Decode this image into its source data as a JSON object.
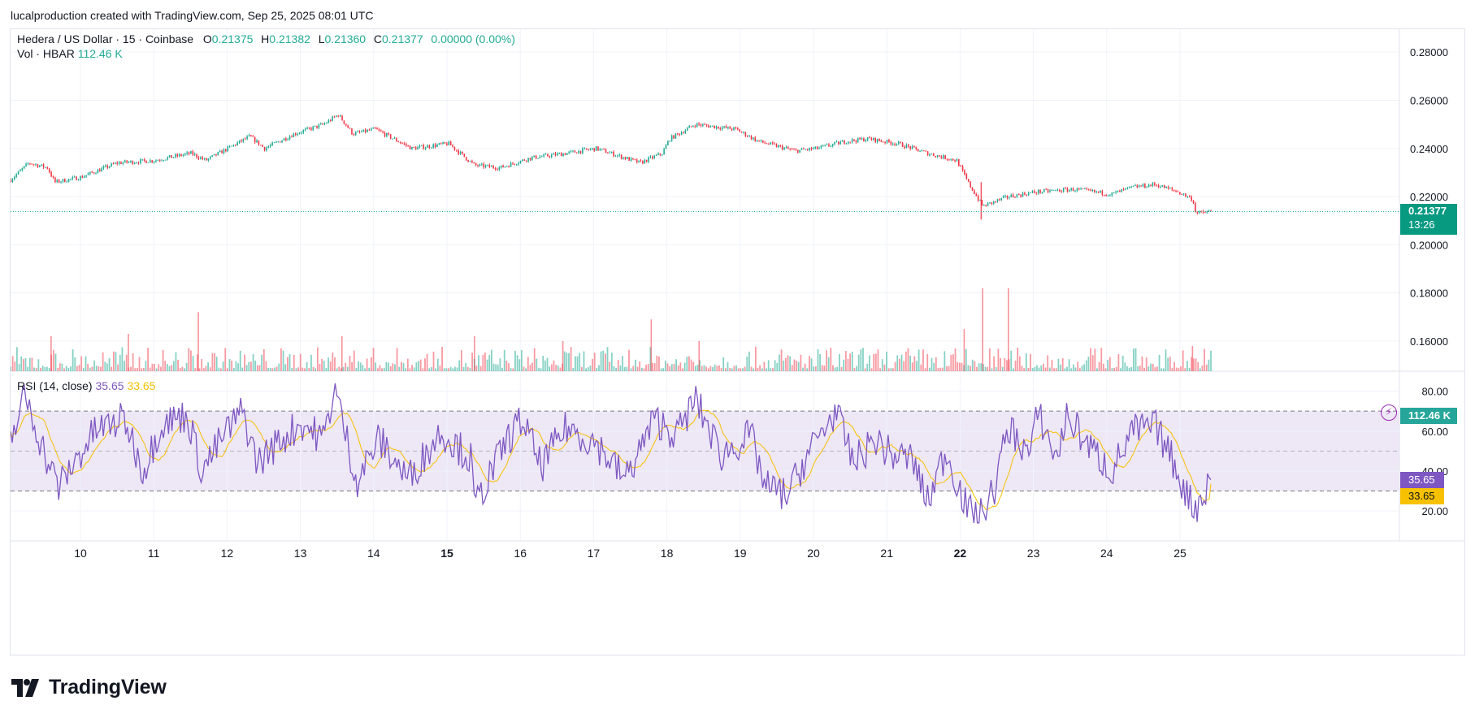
{
  "header": {
    "attribution": "lucalproduction created with TradingView.com, Sep 25, 2025 08:01 UTC"
  },
  "legend": {
    "symbol": "Hedera / US Dollar · 15 · Coinbase",
    "open_label": "O",
    "open": "0.21375",
    "high_label": "H",
    "high": "0.21382",
    "low_label": "L",
    "low": "0.21360",
    "close_label": "C",
    "close": "0.21377",
    "change": "0.00000 (0.00%)",
    "vol_label": "Vol · HBAR",
    "vol_value": "112.46 K",
    "rsi_label": "RSI (14, close)",
    "rsi_value": "35.65",
    "rsi_ma_value": "33.65"
  },
  "price_tag": {
    "price": "0.21377",
    "countdown": "13:26"
  },
  "volume_tag": "112.46 K",
  "rsi_tags": {
    "rsi": "35.65",
    "ma": "33.65"
  },
  "footer": {
    "brand": "TradingView"
  },
  "colors": {
    "up": "#22ab94",
    "down": "#f23645",
    "rsi": "#7e57c2",
    "rsi_ma": "#f7c100",
    "band": "#ede7f6"
  },
  "chart_data": [
    {
      "type": "candlestick",
      "title": "Hedera / US Dollar · 15 · Coinbase",
      "x_ticks": [
        "10",
        "11",
        "12",
        "13",
        "14",
        "15",
        "16",
        "17",
        "18",
        "19",
        "20",
        "21",
        "22",
        "23",
        "24",
        "25"
      ],
      "x_ticks_bold": [
        "15",
        "22"
      ],
      "y_ticks": [
        "0.28000",
        "0.26000",
        "0.24000",
        "0.22000",
        "0.20000",
        "0.18000",
        "0.16000"
      ],
      "ylim": [
        0.1475,
        0.2895
      ],
      "close_anchors": [
        {
          "x": 9.05,
          "y": 0.227
        },
        {
          "x": 9.3,
          "y": 0.234
        },
        {
          "x": 9.55,
          "y": 0.232
        },
        {
          "x": 9.65,
          "y": 0.226
        },
        {
          "x": 10.0,
          "y": 0.228
        },
        {
          "x": 10.5,
          "y": 0.234
        },
        {
          "x": 11.0,
          "y": 0.235
        },
        {
          "x": 11.5,
          "y": 0.238
        },
        {
          "x": 11.7,
          "y": 0.235
        },
        {
          "x": 12.0,
          "y": 0.24
        },
        {
          "x": 12.3,
          "y": 0.245
        },
        {
          "x": 12.5,
          "y": 0.24
        },
        {
          "x": 12.9,
          "y": 0.246
        },
        {
          "x": 13.3,
          "y": 0.25
        },
        {
          "x": 13.5,
          "y": 0.254
        },
        {
          "x": 13.7,
          "y": 0.246
        },
        {
          "x": 14.0,
          "y": 0.248
        },
        {
          "x": 14.5,
          "y": 0.24
        },
        {
          "x": 15.0,
          "y": 0.242
        },
        {
          "x": 15.35,
          "y": 0.233
        },
        {
          "x": 15.7,
          "y": 0.232
        },
        {
          "x": 16.1,
          "y": 0.236
        },
        {
          "x": 16.6,
          "y": 0.238
        },
        {
          "x": 17.0,
          "y": 0.24
        },
        {
          "x": 17.6,
          "y": 0.234
        },
        {
          "x": 17.9,
          "y": 0.238
        },
        {
          "x": 18.0,
          "y": 0.244
        },
        {
          "x": 18.35,
          "y": 0.25
        },
        {
          "x": 18.9,
          "y": 0.248
        },
        {
          "x": 19.2,
          "y": 0.243
        },
        {
          "x": 19.7,
          "y": 0.239
        },
        {
          "x": 20.0,
          "y": 0.24
        },
        {
          "x": 20.4,
          "y": 0.243
        },
        {
          "x": 20.7,
          "y": 0.244
        },
        {
          "x": 21.1,
          "y": 0.242
        },
        {
          "x": 21.5,
          "y": 0.238
        },
        {
          "x": 21.9,
          "y": 0.235
        },
        {
          "x": 22.05,
          "y": 0.226
        },
        {
          "x": 22.25,
          "y": 0.216
        },
        {
          "x": 22.6,
          "y": 0.22
        },
        {
          "x": 23.0,
          "y": 0.222
        },
        {
          "x": 23.5,
          "y": 0.223
        },
        {
          "x": 24.0,
          "y": 0.221
        },
        {
          "x": 24.3,
          "y": 0.224
        },
        {
          "x": 24.6,
          "y": 0.225
        },
        {
          "x": 24.9,
          "y": 0.222
        },
        {
          "x": 25.1,
          "y": 0.219
        },
        {
          "x": 25.15,
          "y": 0.213
        },
        {
          "x": 25.35,
          "y": 0.21377
        }
      ],
      "last_price": 0.21377,
      "volume_spikes": [
        {
          "x": 22.25,
          "v": 0.182
        },
        {
          "x": 22.6,
          "v": 0.182
        },
        {
          "x": 17.75,
          "v": 0.169
        },
        {
          "x": 11.6,
          "v": 0.172
        },
        {
          "x": 22.0,
          "v": 0.165
        },
        {
          "x": 13.55,
          "v": 0.162
        },
        {
          "x": 10.65,
          "v": 0.163
        },
        {
          "x": 15.35,
          "v": 0.162
        },
        {
          "x": 9.6,
          "v": 0.162
        },
        {
          "x": 16.55,
          "v": 0.16
        },
        {
          "x": 18.4,
          "v": 0.16
        },
        {
          "x": 25.1,
          "v": 0.158
        }
      ]
    },
    {
      "type": "line",
      "title": "RSI (14, close)",
      "series": [
        {
          "name": "RSI"
        },
        {
          "name": "MA"
        }
      ],
      "y_ticks": [
        "80.00",
        "60.00",
        "40.00",
        "20.00"
      ],
      "ylim": [
        5,
        90
      ],
      "band": [
        30,
        70
      ],
      "midline": 50,
      "last_rsi": 35.65,
      "last_ma": 33.65,
      "rsi_anchors": [
        {
          "x": 9.05,
          "y": 55
        },
        {
          "x": 9.25,
          "y": 78
        },
        {
          "x": 9.55,
          "y": 45
        },
        {
          "x": 9.7,
          "y": 32
        },
        {
          "x": 10.2,
          "y": 60
        },
        {
          "x": 10.6,
          "y": 66
        },
        {
          "x": 10.85,
          "y": 40
        },
        {
          "x": 11.1,
          "y": 64
        },
        {
          "x": 11.45,
          "y": 68
        },
        {
          "x": 11.65,
          "y": 40
        },
        {
          "x": 11.95,
          "y": 58
        },
        {
          "x": 12.2,
          "y": 70
        },
        {
          "x": 12.4,
          "y": 44
        },
        {
          "x": 12.7,
          "y": 55
        },
        {
          "x": 13.0,
          "y": 64
        },
        {
          "x": 13.3,
          "y": 56
        },
        {
          "x": 13.45,
          "y": 82
        },
        {
          "x": 13.75,
          "y": 35
        },
        {
          "x": 14.05,
          "y": 56
        },
        {
          "x": 14.45,
          "y": 36
        },
        {
          "x": 14.9,
          "y": 60
        },
        {
          "x": 15.3,
          "y": 46
        },
        {
          "x": 15.35,
          "y": 22
        },
        {
          "x": 15.8,
          "y": 56
        },
        {
          "x": 16.0,
          "y": 66
        },
        {
          "x": 16.25,
          "y": 42
        },
        {
          "x": 16.6,
          "y": 62
        },
        {
          "x": 17.0,
          "y": 54
        },
        {
          "x": 17.4,
          "y": 36
        },
        {
          "x": 17.8,
          "y": 66
        },
        {
          "x": 18.1,
          "y": 58
        },
        {
          "x": 18.35,
          "y": 76
        },
        {
          "x": 18.7,
          "y": 48
        },
        {
          "x": 19.1,
          "y": 58
        },
        {
          "x": 19.3,
          "y": 32
        },
        {
          "x": 19.6,
          "y": 28
        },
        {
          "x": 19.9,
          "y": 50
        },
        {
          "x": 20.25,
          "y": 70
        },
        {
          "x": 20.5,
          "y": 44
        },
        {
          "x": 20.8,
          "y": 56
        },
        {
          "x": 21.0,
          "y": 48
        },
        {
          "x": 21.3,
          "y": 46
        },
        {
          "x": 21.5,
          "y": 24
        },
        {
          "x": 21.75,
          "y": 50
        },
        {
          "x": 22.05,
          "y": 20
        },
        {
          "x": 22.2,
          "y": 16
        },
        {
          "x": 22.4,
          "y": 30
        },
        {
          "x": 22.6,
          "y": 62
        },
        {
          "x": 22.9,
          "y": 48
        },
        {
          "x": 23.0,
          "y": 70
        },
        {
          "x": 23.25,
          "y": 46
        },
        {
          "x": 23.4,
          "y": 68
        },
        {
          "x": 23.7,
          "y": 52
        },
        {
          "x": 24.0,
          "y": 40
        },
        {
          "x": 24.3,
          "y": 60
        },
        {
          "x": 24.6,
          "y": 62
        },
        {
          "x": 24.8,
          "y": 48
        },
        {
          "x": 25.05,
          "y": 26
        },
        {
          "x": 25.15,
          "y": 22
        },
        {
          "x": 25.35,
          "y": 35.65
        }
      ]
    }
  ]
}
